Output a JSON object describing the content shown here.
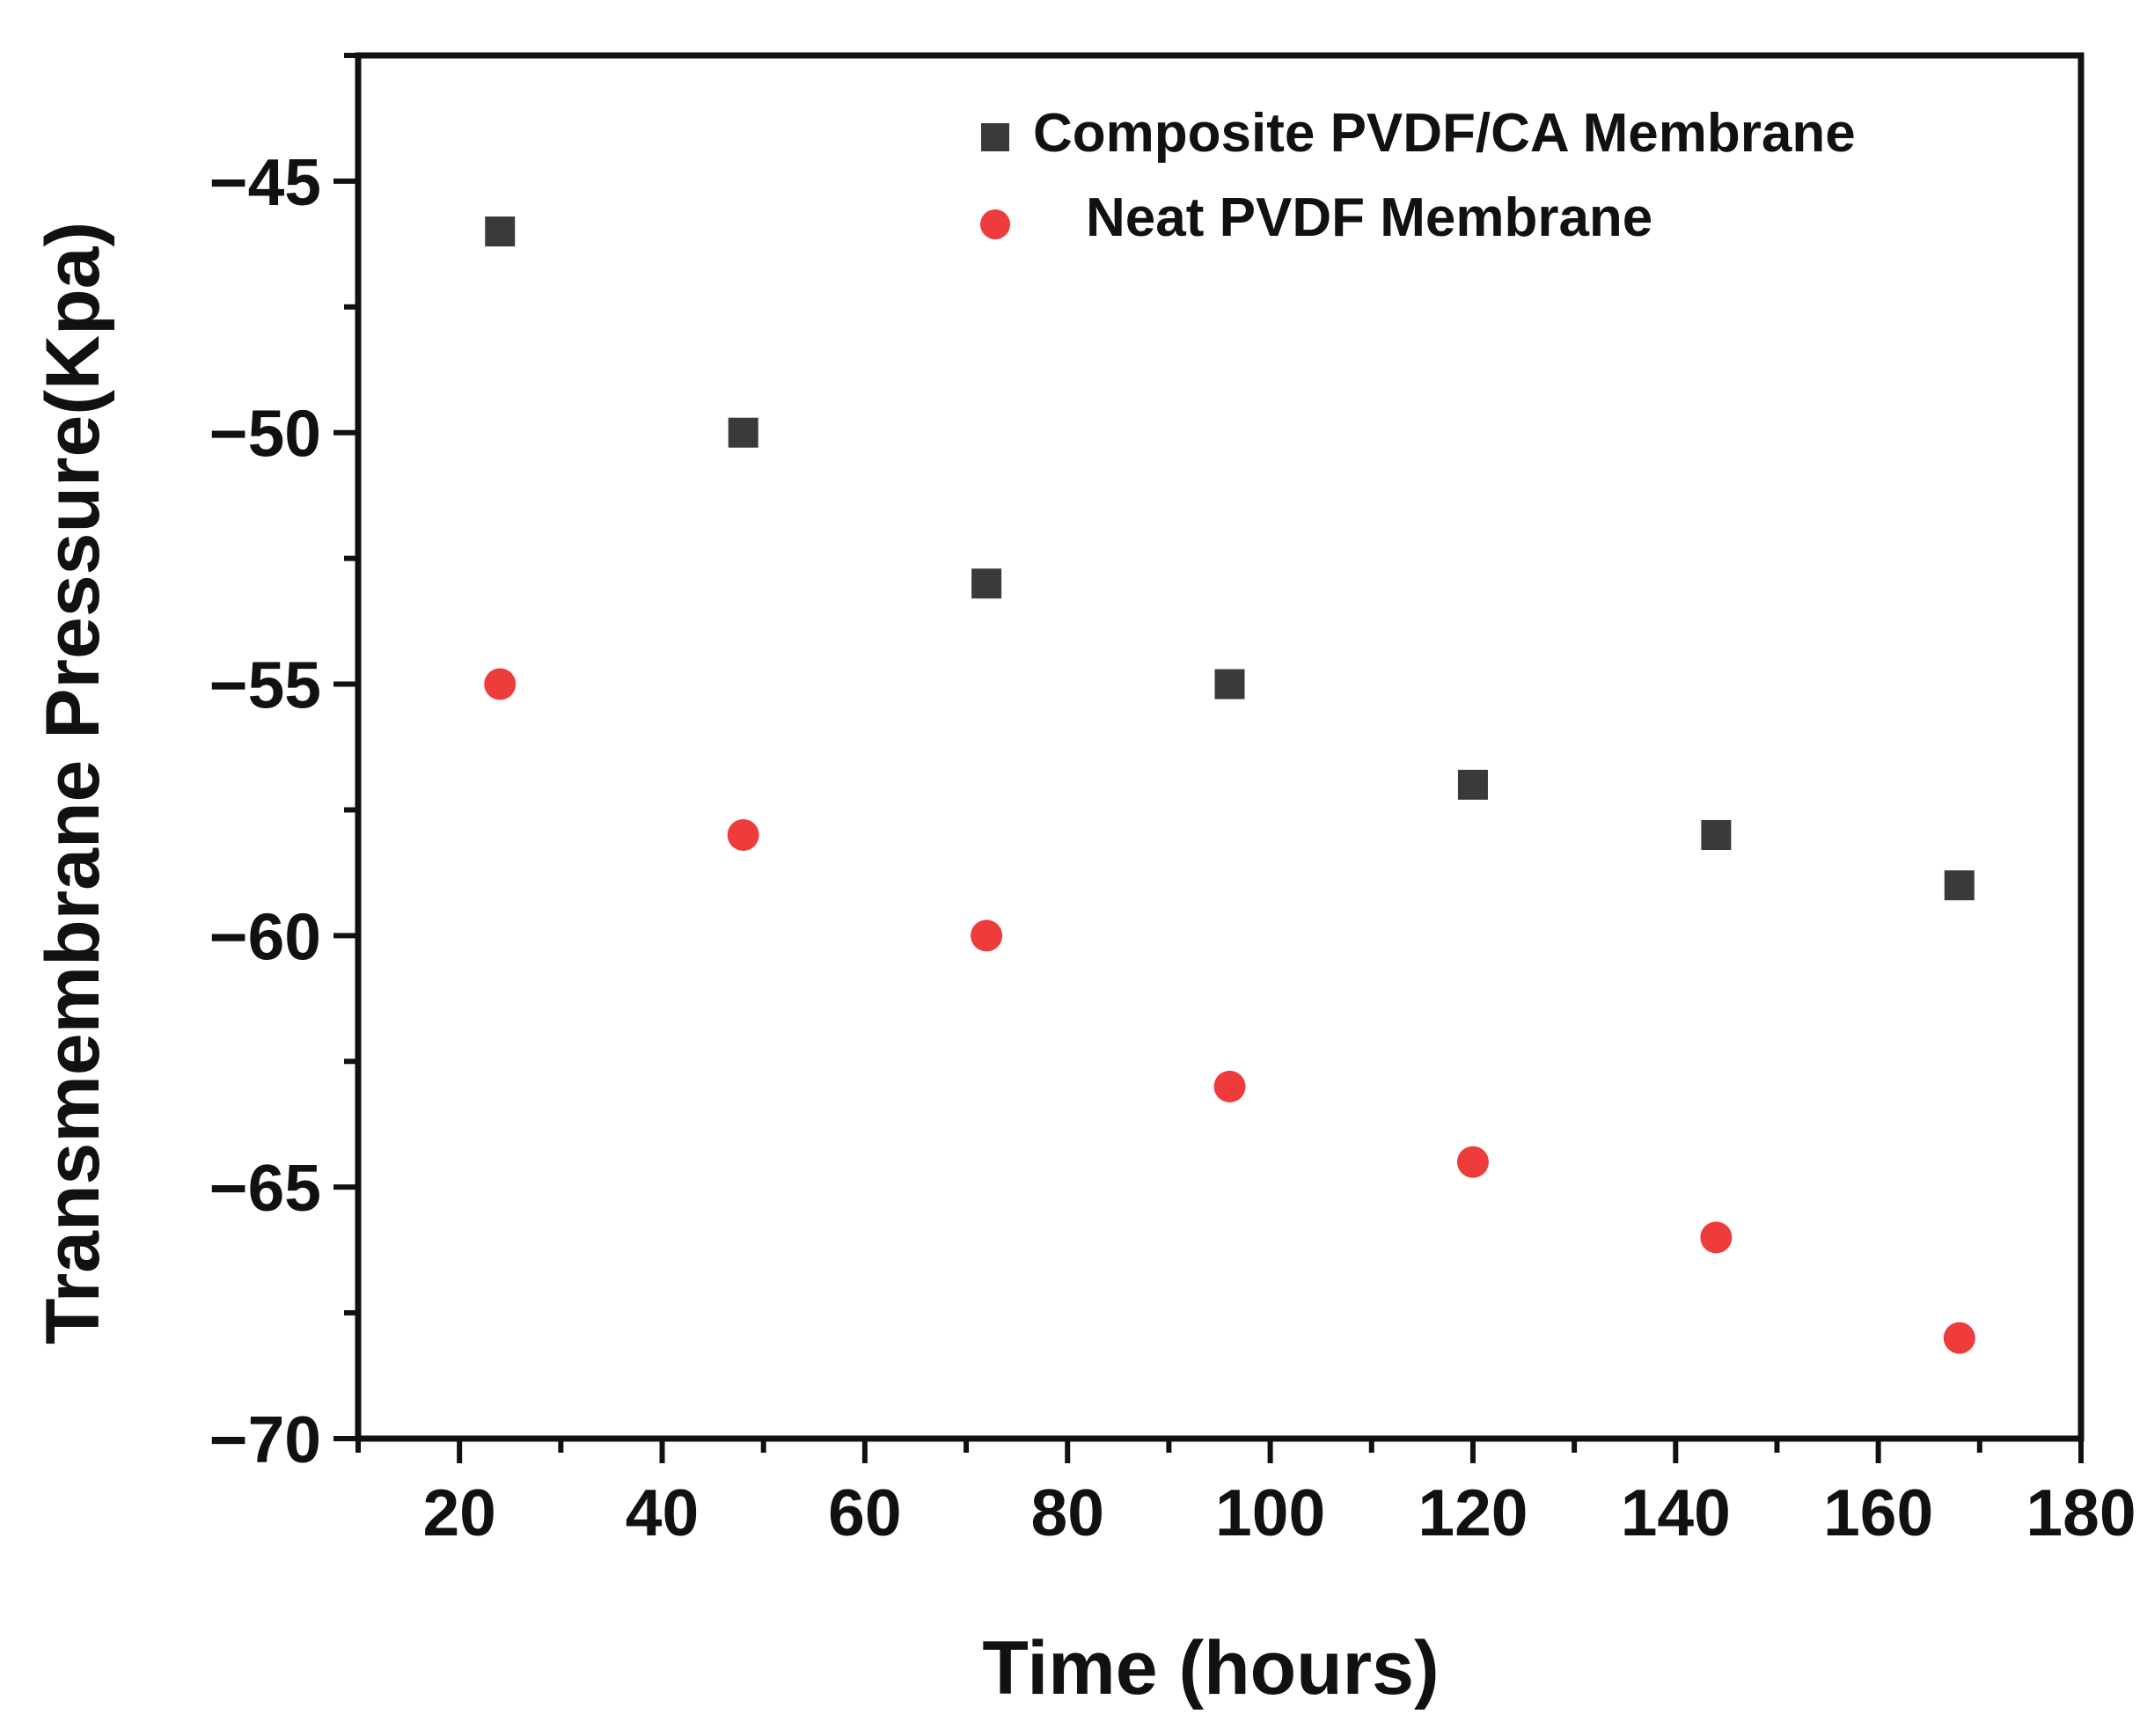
{
  "chart_data": {
    "type": "scatter",
    "title": "",
    "xlabel": "Time (hours)",
    "ylabel": "Transmembrane Pressure(Kpa)",
    "xlim": [
      10,
      180
    ],
    "ylim": [
      -70,
      -42.5
    ],
    "xticks": [
      20,
      40,
      60,
      80,
      100,
      120,
      140,
      160,
      180
    ],
    "yticks": [
      -45,
      -50,
      -55,
      -60,
      -65,
      -70
    ],
    "xtick_labels": [
      "20",
      "40",
      "60",
      "80",
      "100",
      "120",
      "140",
      "160",
      "180"
    ],
    "ytick_labels": [
      "−45",
      "−50",
      "−55",
      "−60",
      "−65",
      "−70"
    ],
    "grid": false,
    "legend_position": "top-right",
    "series": [
      {
        "name": "Composite PVDF/CA Membrane",
        "marker": "square",
        "color": "#3a3a3a",
        "x": [
          24,
          48,
          72,
          96,
          120,
          144,
          168
        ],
        "y": [
          -46,
          -50,
          -53,
          -55,
          -57,
          -58,
          -59
        ]
      },
      {
        "name": "Neat PVDF Membrane",
        "marker": "circle",
        "color": "#ee3b3b",
        "x": [
          24,
          48,
          72,
          96,
          120,
          144,
          168
        ],
        "y": [
          -55,
          -58,
          -60,
          -63,
          -64.5,
          -66,
          -68
        ]
      }
    ]
  }
}
